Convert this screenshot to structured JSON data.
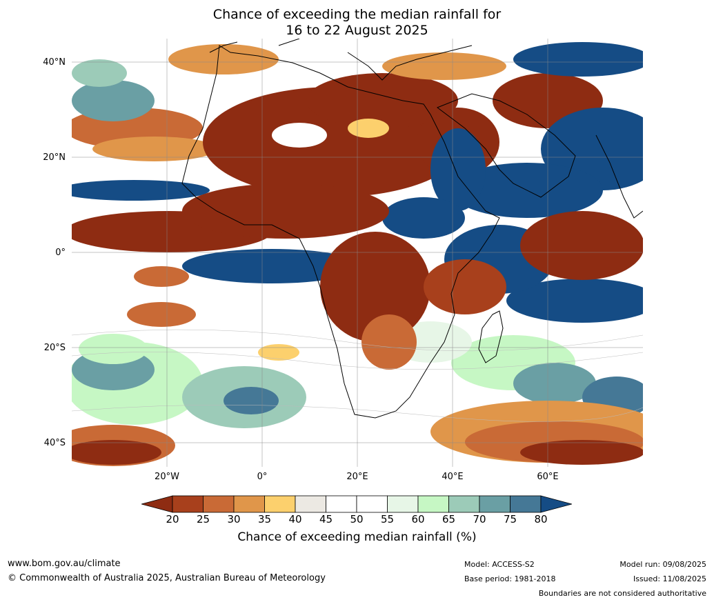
{
  "title": {
    "line1": "Chance of exceeding the median rainfall for",
    "line2": "16 to 22 August 2025"
  },
  "map": {
    "lat_ticks": [
      "40°N",
      "20°N",
      "0°",
      "20°S",
      "40°S"
    ],
    "lon_ticks": [
      "20°W",
      "0°",
      "20°E",
      "40°E",
      "60°E"
    ],
    "lat_values": [
      40,
      20,
      0,
      -20,
      -40
    ],
    "lon_values": [
      -20,
      0,
      20,
      40,
      60
    ],
    "extent": {
      "lon_min": -40,
      "lon_max": 80,
      "lat_min": -45,
      "lat_max": 45
    }
  },
  "colorbar": {
    "ticks": [
      "20",
      "25",
      "30",
      "35",
      "40",
      "45",
      "50",
      "55",
      "60",
      "65",
      "70",
      "75",
      "80"
    ],
    "colors": [
      "#8e2c12",
      "#a8401c",
      "#c96a36",
      "#e0964a",
      "#fcd06d",
      "#ece9e3",
      "#ffffff",
      "#ffffff",
      "#e7f6e7",
      "#c6f7c4",
      "#9ccbb8",
      "#6a9fa4",
      "#457896"
    ],
    "low_color": "#8e2c12",
    "high_color": "#154c85",
    "label": "Chance of exceeding median rainfall (%)"
  },
  "footer": {
    "website": "www.bom.gov.au/climate",
    "copyright": "© Commonwealth of Australia 2025, Australian Bureau of Meteorology",
    "model": "Model: ACCESS-S2",
    "base_period": "Base period: 1981-2018",
    "model_run": "Model run: 09/08/2025",
    "issued": "Issued: 11/08/2025",
    "disclaimer": "Boundaries are not considered authoritative"
  }
}
